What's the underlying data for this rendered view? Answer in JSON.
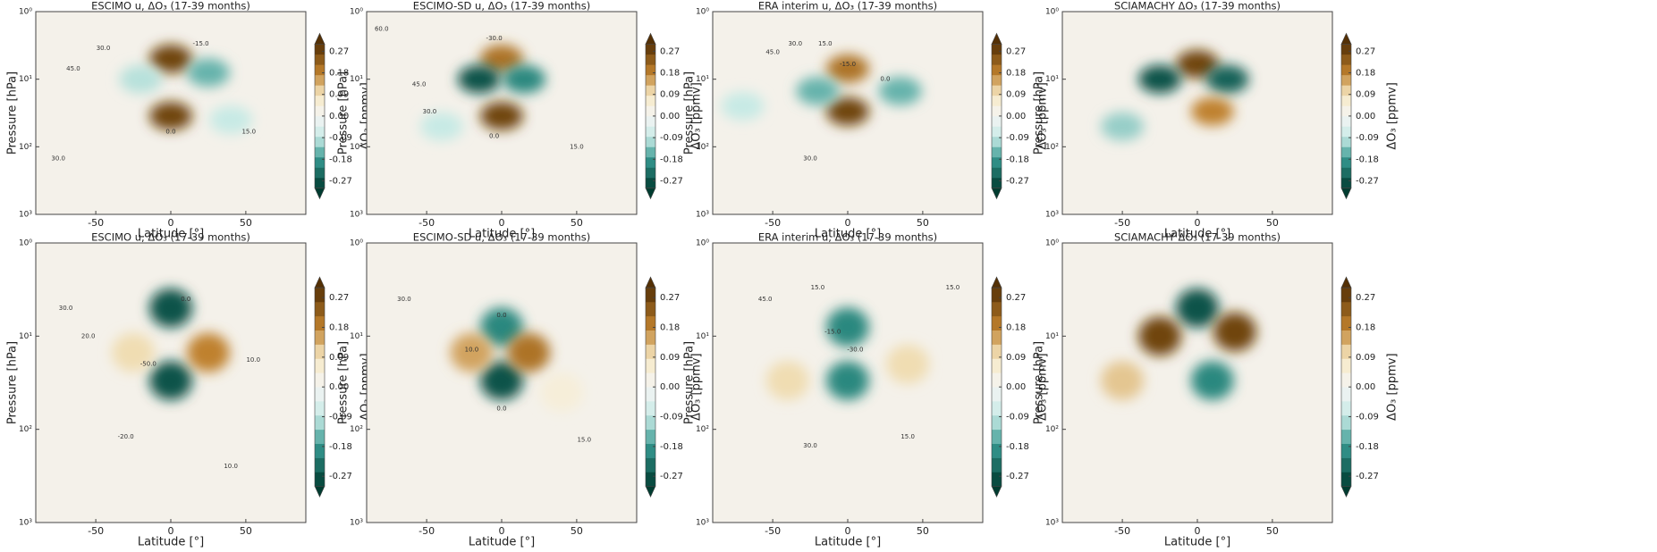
{
  "chart_data": [
    {
      "type": "contour",
      "title": "ESCIMO u, ΔO₃ (17-39 months)",
      "xlabel": "Latitude [°]",
      "ylabel": "Pressure [hPa]",
      "clabel": "ΔO₃ [ppmv]",
      "xlim": [
        -90,
        90
      ],
      "xticks": [
        -50,
        0,
        50
      ],
      "ylim": [
        1000,
        1
      ],
      "log_y": true,
      "yticks": [
        {
          "value": 1,
          "label": "10⁰"
        },
        {
          "value": 10,
          "label": "10¹"
        },
        {
          "value": 100,
          "label": "10²"
        },
        {
          "value": 1000,
          "label": "10³"
        }
      ],
      "clim": [
        -0.3,
        0.3
      ],
      "cticks": [
        0.27,
        0.18,
        0.09,
        {
          "value": 0,
          "label": "0.00"
        },
        -0.09,
        -0.18,
        -0.27
      ],
      "anomalies": [
        {
          "lat": 0,
          "pressure": 5,
          "value": 0.27
        },
        {
          "lat": 0,
          "pressure": 35,
          "value": 0.27
        },
        {
          "lat": 25,
          "pressure": 8,
          "value": -0.15
        },
        {
          "lat": -20,
          "pressure": 10,
          "value": -0.1
        },
        {
          "lat": 40,
          "pressure": 40,
          "value": -0.09
        }
      ],
      "contour_labels": [
        {
          "value": 30,
          "label": "30.0",
          "lat": -45,
          "pressure": 3.5
        },
        {
          "value": 45,
          "label": "45.0",
          "lat": -65,
          "pressure": 7
        },
        {
          "value": -15,
          "label": "-15.0",
          "lat": 20,
          "pressure": 3
        },
        {
          "value": 15,
          "label": "15.0",
          "lat": 52,
          "pressure": 60
        },
        {
          "value": 0,
          "label": "0.0",
          "lat": 0,
          "pressure": 60
        },
        {
          "value": 30,
          "label": "30.0",
          "lat": -75,
          "pressure": 150
        }
      ]
    },
    {
      "type": "contour",
      "title": "ESCIMO-SD u, ΔO₃ (17-39 months)",
      "xlabel": "Latitude [°]",
      "ylabel": "Pressure [hPa]",
      "clabel": "ΔO₃ [ppmv]",
      "xlim": [
        -90,
        90
      ],
      "xticks": [
        -50,
        0,
        50
      ],
      "ylim": [
        1000,
        1
      ],
      "log_y": true,
      "yticks": [
        {
          "value": 1,
          "label": "10⁰"
        },
        {
          "value": 10,
          "label": "10¹"
        },
        {
          "value": 100,
          "label": "10²"
        },
        {
          "value": 1000,
          "label": "10³"
        }
      ],
      "clim": [
        -0.3,
        0.3
      ],
      "cticks": [
        0.27,
        0.18,
        0.09,
        {
          "value": 0,
          "label": "0.00"
        },
        -0.09,
        -0.18,
        -0.27
      ],
      "anomalies": [
        {
          "lat": 0,
          "pressure": 5,
          "value": 0.2
        },
        {
          "lat": 0,
          "pressure": 35,
          "value": 0.27
        },
        {
          "lat": -15,
          "pressure": 10,
          "value": -0.27
        },
        {
          "lat": 15,
          "pressure": 10,
          "value": -0.2
        },
        {
          "lat": -40,
          "pressure": 50,
          "value": -0.09
        }
      ],
      "contour_labels": [
        {
          "value": 60,
          "label": "60.0",
          "lat": -80,
          "pressure": 1.8
        },
        {
          "value": 45,
          "label": "45.0",
          "lat": -55,
          "pressure": 12
        },
        {
          "value": 30,
          "label": "30.0",
          "lat": -48,
          "pressure": 30
        },
        {
          "value": -30,
          "label": "-30.0",
          "lat": -5,
          "pressure": 2.5
        },
        {
          "value": 15,
          "label": "15.0",
          "lat": 50,
          "pressure": 100
        },
        {
          "value": 0,
          "label": "0.0",
          "lat": -5,
          "pressure": 70
        }
      ]
    },
    {
      "type": "contour",
      "title": "ERA interim u, ΔO₃ (17-39 months)",
      "xlabel": "Latitude [°]",
      "ylabel": "Pressure [hPa]",
      "clabel": "ΔO₃ [ppmv]",
      "xlim": [
        -90,
        90
      ],
      "xticks": [
        -50,
        0,
        50
      ],
      "ylim": [
        1000,
        1
      ],
      "log_y": true,
      "yticks": [
        {
          "value": 1,
          "label": "10⁰"
        },
        {
          "value": 10,
          "label": "10¹"
        },
        {
          "value": 100,
          "label": "10²"
        },
        {
          "value": 1000,
          "label": "10³"
        }
      ],
      "clim": [
        -0.3,
        0.3
      ],
      "cticks": [
        0.27,
        0.18,
        0.09,
        {
          "value": 0,
          "label": "0.00"
        },
        -0.09,
        -0.18,
        -0.27
      ],
      "anomalies": [
        {
          "lat": 0,
          "pressure": 7,
          "value": 0.2
        },
        {
          "lat": 0,
          "pressure": 30,
          "value": 0.27
        },
        {
          "lat": -20,
          "pressure": 15,
          "value": -0.15
        },
        {
          "lat": 35,
          "pressure": 15,
          "value": -0.15
        },
        {
          "lat": -70,
          "pressure": 25,
          "value": -0.09
        }
      ],
      "contour_labels": [
        {
          "value": 45,
          "label": "45.0",
          "lat": -50,
          "pressure": 4
        },
        {
          "value": 30,
          "label": "30.0",
          "lat": -35,
          "pressure": 3
        },
        {
          "value": 15,
          "label": "15.0",
          "lat": -15,
          "pressure": 3
        },
        {
          "value": -15,
          "label": "-15.0",
          "lat": 0,
          "pressure": 6
        },
        {
          "value": 0,
          "label": "0.0",
          "lat": 25,
          "pressure": 10
        },
        {
          "value": 30,
          "label": "30.0",
          "lat": -25,
          "pressure": 150
        }
      ]
    },
    {
      "type": "contour",
      "title": "SCIAMACHY ΔO₃ (17-39 months)",
      "xlabel": "Latitude [°]",
      "ylabel": "Pressure [hPa]",
      "clabel": "ΔO₃ [ppmv]",
      "xlim": [
        -90,
        90
      ],
      "xticks": [
        -50,
        0,
        50
      ],
      "ylim": [
        1000,
        1
      ],
      "log_y": true,
      "yticks": [
        {
          "value": 1,
          "label": "10⁰"
        },
        {
          "value": 10,
          "label": "10¹"
        },
        {
          "value": 100,
          "label": "10²"
        },
        {
          "value": 1000,
          "label": "10³"
        }
      ],
      "clim": [
        -0.3,
        0.3
      ],
      "cticks": [
        0.27,
        0.18,
        0.09,
        {
          "value": 0,
          "label": "0.00"
        },
        -0.09,
        -0.18,
        -0.27
      ],
      "anomalies": [
        {
          "lat": 0,
          "pressure": 6,
          "value": 0.27
        },
        {
          "lat": -25,
          "pressure": 10,
          "value": -0.27
        },
        {
          "lat": 20,
          "pressure": 10,
          "value": -0.25
        },
        {
          "lat": 10,
          "pressure": 30,
          "value": 0.18
        },
        {
          "lat": -50,
          "pressure": 50,
          "value": -0.12
        }
      ],
      "contour_labels": []
    },
    {
      "type": "contour",
      "title": "ESCIMO u, ΔO₃ (17-39 months)",
      "xlabel": "Latitude [°]",
      "ylabel": "Pressure [hPa]",
      "clabel": "ΔO₃ [ppmv]",
      "xlim": [
        -90,
        90
      ],
      "xticks": [
        -50,
        0,
        50
      ],
      "ylim": [
        1000,
        1
      ],
      "log_y": true,
      "yticks": [
        {
          "value": 1,
          "label": "10⁰"
        },
        {
          "value": 10,
          "label": "10¹"
        },
        {
          "value": 100,
          "label": "10²"
        },
        {
          "value": 1000,
          "label": "10³"
        }
      ],
      "clim": [
        -0.3,
        0.3
      ],
      "cticks": [
        0.27,
        0.18,
        0.09,
        {
          "value": 0,
          "label": "0.00"
        },
        -0.09,
        -0.18,
        -0.27
      ],
      "anomalies": [
        {
          "lat": 0,
          "pressure": 5,
          "value": -0.27
        },
        {
          "lat": 0,
          "pressure": 30,
          "value": -0.27
        },
        {
          "lat": 25,
          "pressure": 15,
          "value": 0.18
        },
        {
          "lat": -25,
          "pressure": 15,
          "value": 0.1
        }
      ],
      "contour_labels": [
        {
          "value": 30,
          "label": "30.0",
          "lat": -70,
          "pressure": 5
        },
        {
          "value": 20,
          "label": "20.0",
          "lat": -55,
          "pressure": 10
        },
        {
          "value": 0,
          "label": "0.0",
          "lat": 10,
          "pressure": 4
        },
        {
          "value": -50,
          "label": "-50.0",
          "lat": -15,
          "pressure": 20
        },
        {
          "value": 10,
          "label": "10.0",
          "lat": 55,
          "pressure": 18
        },
        {
          "value": -20,
          "label": "-20.0",
          "lat": -30,
          "pressure": 120
        },
        {
          "value": 10,
          "label": "10.0",
          "lat": 40,
          "pressure": 250
        }
      ]
    },
    {
      "type": "contour",
      "title": "ESCIMO-SD u, ΔO₃ (17-39 months)",
      "xlabel": "Latitude [°]",
      "ylabel": "Pressure [hPa]",
      "clabel": "ΔO₃ [ppmv]",
      "xlim": [
        -90,
        90
      ],
      "xticks": [
        -50,
        0,
        50
      ],
      "ylim": [
        1000,
        1
      ],
      "log_y": true,
      "yticks": [
        {
          "value": 1,
          "label": "10⁰"
        },
        {
          "value": 10,
          "label": "10¹"
        },
        {
          "value": 100,
          "label": "10²"
        },
        {
          "value": 1000,
          "label": "10³"
        }
      ],
      "clim": [
        -0.3,
        0.3
      ],
      "cticks": [
        0.27,
        0.18,
        0.09,
        {
          "value": 0,
          "label": "0.00"
        },
        -0.09,
        -0.18,
        -0.27
      ],
      "anomalies": [
        {
          "lat": 0,
          "pressure": 8,
          "value": -0.2
        },
        {
          "lat": 0,
          "pressure": 30,
          "value": -0.27
        },
        {
          "lat": -20,
          "pressure": 15,
          "value": 0.15
        },
        {
          "lat": 18,
          "pressure": 15,
          "value": 0.2
        },
        {
          "lat": 40,
          "pressure": 40,
          "value": 0.05
        }
      ],
      "contour_labels": [
        {
          "value": 30,
          "label": "30.0",
          "lat": -65,
          "pressure": 4
        },
        {
          "value": 0,
          "label": "0.0",
          "lat": 0,
          "pressure": 6
        },
        {
          "value": 10,
          "label": "10.0",
          "lat": -20,
          "pressure": 14
        },
        {
          "value": 0,
          "label": "0.0",
          "lat": 0,
          "pressure": 60
        },
        {
          "value": 15,
          "label": "15.0",
          "lat": 55,
          "pressure": 130
        }
      ]
    },
    {
      "type": "contour",
      "title": "ERA interim u, ΔO₃ (17-39 months)",
      "xlabel": "Latitude [°]",
      "ylabel": "Pressure [hPa]",
      "clabel": "ΔO₃ [ppmv]",
      "xlim": [
        -90,
        90
      ],
      "xticks": [
        -50,
        0,
        50
      ],
      "ylim": [
        1000,
        1
      ],
      "log_y": true,
      "yticks": [
        {
          "value": 1,
          "label": "10⁰"
        },
        {
          "value": 10,
          "label": "10¹"
        },
        {
          "value": 100,
          "label": "10²"
        },
        {
          "value": 1000,
          "label": "10³"
        }
      ],
      "clim": [
        -0.3,
        0.3
      ],
      "cticks": [
        0.27,
        0.18,
        0.09,
        {
          "value": 0,
          "label": "0.00"
        },
        -0.09,
        -0.18,
        -0.27
      ],
      "anomalies": [
        {
          "lat": 0,
          "pressure": 8,
          "value": -0.2
        },
        {
          "lat": 0,
          "pressure": 30,
          "value": -0.2
        },
        {
          "lat": -40,
          "pressure": 30,
          "value": 0.1
        },
        {
          "lat": 40,
          "pressure": 20,
          "value": 0.1
        }
      ],
      "contour_labels": [
        {
          "value": 45,
          "label": "45.0",
          "lat": -55,
          "pressure": 4
        },
        {
          "value": 15,
          "label": "15.0",
          "lat": -20,
          "pressure": 3
        },
        {
          "value": -15,
          "label": "-15.0",
          "lat": -10,
          "pressure": 9
        },
        {
          "value": -30,
          "label": "-30.0",
          "lat": 5,
          "pressure": 14
        },
        {
          "value": 15,
          "label": "15.0",
          "lat": 70,
          "pressure": 3
        },
        {
          "value": 30,
          "label": "30.0",
          "lat": -25,
          "pressure": 150
        },
        {
          "value": 15,
          "label": "15.0",
          "lat": 40,
          "pressure": 120
        }
      ]
    },
    {
      "type": "contour",
      "title": "SCIAMACHY ΔO₃ (17-39 months)",
      "xlabel": "Latitude [°]",
      "ylabel": "Pressure [hPa]",
      "clabel": "ΔO₃ [ppmv]",
      "xlim": [
        -90,
        90
      ],
      "xticks": [
        -50,
        0,
        50
      ],
      "ylim": [
        1000,
        1
      ],
      "log_y": true,
      "yticks": [
        {
          "value": 1,
          "label": "10⁰"
        },
        {
          "value": 10,
          "label": "10¹"
        },
        {
          "value": 100,
          "label": "10²"
        },
        {
          "value": 1000,
          "label": "10³"
        }
      ],
      "clim": [
        -0.3,
        0.3
      ],
      "cticks": [
        0.27,
        0.18,
        0.09,
        {
          "value": 0,
          "label": "0.00"
        },
        -0.09,
        -0.18,
        -0.27
      ],
      "anomalies": [
        {
          "lat": 0,
          "pressure": 5,
          "value": -0.27
        },
        {
          "lat": -25,
          "pressure": 10,
          "value": 0.27
        },
        {
          "lat": 25,
          "pressure": 9,
          "value": 0.27
        },
        {
          "lat": 10,
          "pressure": 30,
          "value": -0.2
        },
        {
          "lat": -50,
          "pressure": 30,
          "value": 0.12
        }
      ],
      "contour_labels": []
    }
  ]
}
